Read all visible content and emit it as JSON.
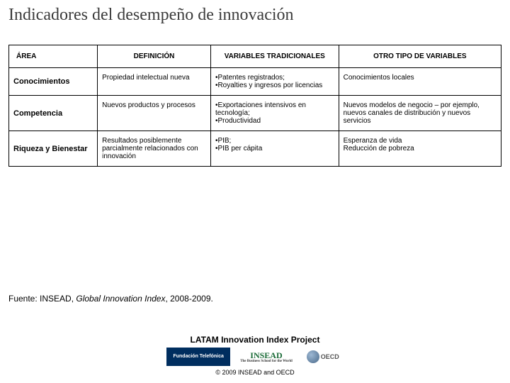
{
  "title": "Indicadores del desempeño de innovación",
  "table": {
    "headers": {
      "area": "ÁREA",
      "definicion": "DEFINICIÓN",
      "variables": "VARIABLES TRADICIONALES",
      "otro": "OTRO TIPO DE VARIABLES"
    },
    "rows": [
      {
        "area": "Conocimientos",
        "definicion": "Propiedad intelectual nueva",
        "variables": "•Patentes registrados;\n•Royalties y ingresos por licencias",
        "otro": "Conocimientos locales"
      },
      {
        "area": "Competencia",
        "definicion": "Nuevos productos y procesos",
        "variables": "•Exportaciones intensivos en tecnología;\n•Productividad",
        "otro": "Nuevos modelos de negocio – por ejemplo, nuevos canales de distribución y nuevos servicios"
      },
      {
        "area": "Riqueza y Bienestar",
        "definicion": "Resultados posiblemente parcialmente relacionados con innovación",
        "variables": "•PIB;\n•PIB per cápita",
        "otro": "Esperanza de vida\nReducción de pobreza"
      }
    ]
  },
  "source": {
    "prefix": "Fuente: INSEAD, ",
    "italic": "Global Innovation Index",
    "suffix": ", 2008-2009."
  },
  "footer": {
    "project": "LATAM Innovation Index Project",
    "copyright": "© 2009 INSEAD and OECD"
  },
  "logos": {
    "telefonica": "Fundación Telefónica",
    "insead": "INSEAD",
    "insead_sub": "The Business School for the World",
    "oecd": "OECD"
  }
}
